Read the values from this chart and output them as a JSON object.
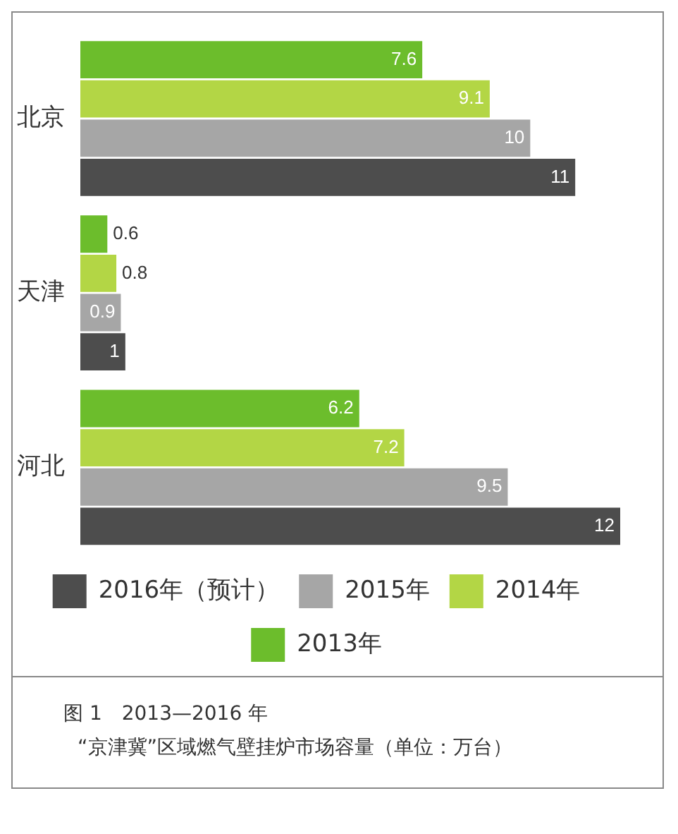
{
  "chart_data": {
    "type": "bar",
    "orientation": "horizontal",
    "categories": [
      "北京",
      "天津",
      "河北"
    ],
    "series": [
      {
        "name": "2013年",
        "color": "#6cbd2c",
        "values": [
          7.6,
          0.6,
          6.2
        ]
      },
      {
        "name": "2014年",
        "color": "#b3d645",
        "values": [
          9.1,
          0.8,
          7.2
        ]
      },
      {
        "name": "2015年",
        "color": "#a6a6a6",
        "values": [
          10,
          0.9,
          9.5
        ]
      },
      {
        "name": "2016年（预计）",
        "color": "#4d4d4d",
        "values": [
          11,
          1,
          12
        ]
      }
    ],
    "data_labels": true,
    "legend": "bottom",
    "tick_labels": "y",
    "annotations": [
      "图 1　2013—2016 年",
      "“京津冀”区域燃气壁挂炉市场容量（单位：万台）"
    ]
  }
}
